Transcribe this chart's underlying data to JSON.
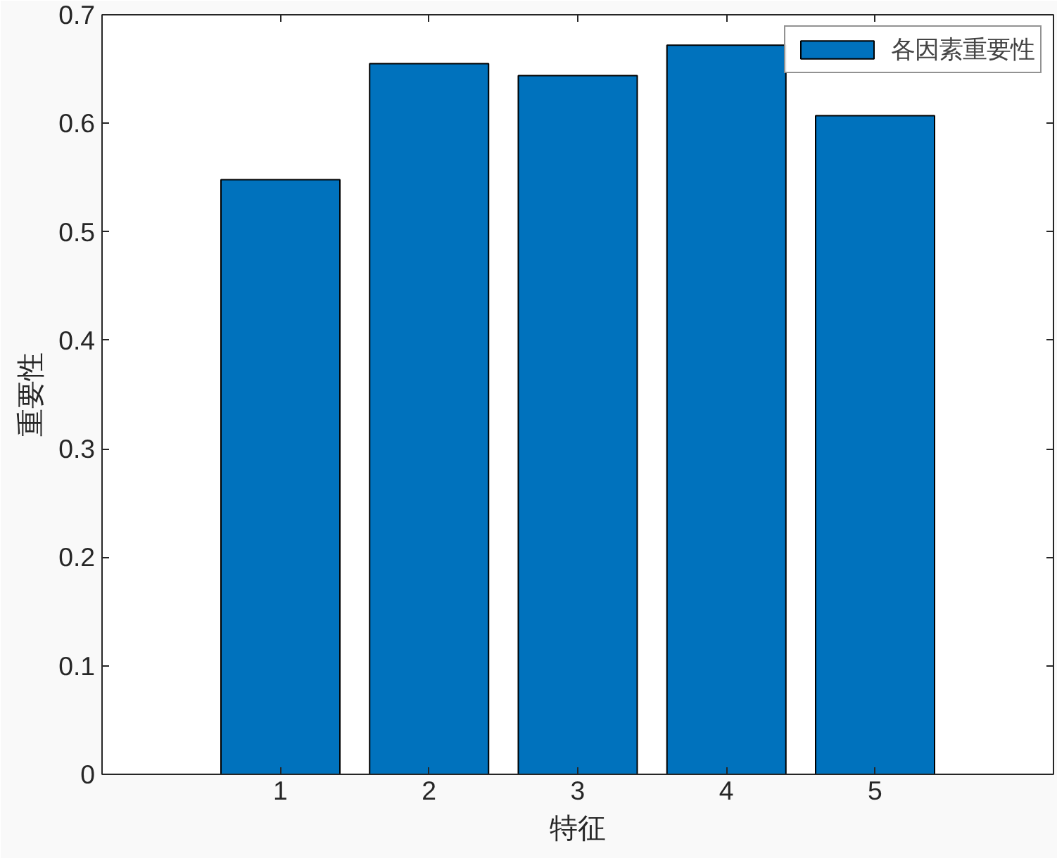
{
  "chart_data": {
    "type": "bar",
    "xlabel": "特征",
    "ylabel": "重要性",
    "x": [
      1,
      2,
      3,
      4,
      5
    ],
    "series": [
      {
        "name": "各因素重要性",
        "color": "#0072bd",
        "values": [
          0.548,
          0.655,
          0.644,
          0.672,
          0.607
        ]
      }
    ],
    "xlim": [
      -0.2,
      6.2
    ],
    "xticks": [
      1,
      2,
      3,
      4,
      5
    ],
    "ylim": [
      0,
      0.7
    ],
    "yticks": [
      0,
      0.1,
      0.2,
      0.3,
      0.4,
      0.5,
      0.6,
      0.7
    ],
    "grid": false,
    "legend": "top right"
  }
}
